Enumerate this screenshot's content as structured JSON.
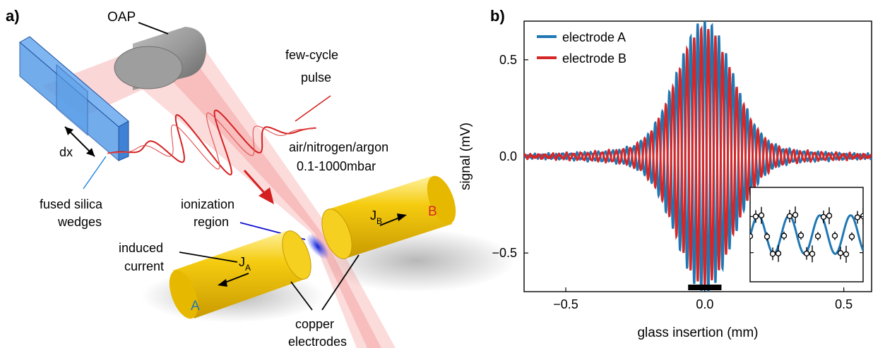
{
  "panel_a": {
    "panel_label": "a)",
    "labels": {
      "oap": "OAP",
      "pulse_line1": "few-cycle",
      "pulse_line2": "pulse",
      "gas_line1": "air/nitrogen/argon",
      "gas_line2": "0.1-1000mbar",
      "dx": "dx",
      "wedges_line1": "fused silica",
      "wedges_line2": "wedges",
      "ionization_line1": "ionization",
      "ionization_line2": "region",
      "induced_line1": "induced",
      "induced_line2": "current",
      "ja_main": "J",
      "ja_sub": "A",
      "jb_main": "J",
      "jb_sub": "B",
      "electrode_a": "A",
      "electrode_b": "B",
      "copper_line1": "copper",
      "copper_line2": "electrodes"
    },
    "colors": {
      "electrode": "#f2c200",
      "beam": "#f06060",
      "glass": "#5a9ee8",
      "pulse": "#d42020"
    }
  },
  "panel_b": {
    "panel_label": "b)"
  },
  "chart_data": {
    "type": "line",
    "xlabel": "glass insertion (mm)",
    "ylabel": "signal (mV)",
    "xlim": [
      -0.65,
      0.6
    ],
    "ylim": [
      -0.7,
      0.7
    ],
    "xticks": [
      -0.5,
      0.0,
      0.5
    ],
    "xtick_labels": [
      "−0.5",
      "0.0",
      "0.5"
    ],
    "yticks": [
      -0.5,
      0.0,
      0.5
    ],
    "ytick_labels": [
      "−0.5",
      "0.0",
      "0.5"
    ],
    "grid": false,
    "legend_position": "top-left",
    "series": [
      {
        "name": "electrode A",
        "color": "#1f77b4",
        "amplitude": 0.66,
        "envelope_width": 0.14,
        "period": 0.0255,
        "phase": 0.0
      },
      {
        "name": "electrode B",
        "color": "#d62728",
        "amplitude": 0.62,
        "envelope_width": 0.14,
        "period": 0.0255,
        "phase": 3.14159
      }
    ],
    "marker_bar": {
      "x_range": [
        -0.06,
        0.06
      ],
      "color": "#000000"
    },
    "inset": {
      "x_range": [
        -0.06,
        0.06
      ],
      "series_color": "#1f77b4",
      "points": [
        -0.04,
        0.45,
        0.48,
        -0.05,
        -0.48,
        -0.47,
        -0.03,
        0.46,
        0.49,
        -0.02,
        -0.47,
        -0.48,
        -0.04,
        0.44,
        0.47,
        -0.03,
        -0.46,
        -0.49,
        -0.05,
        0.43,
        0.46
      ]
    }
  }
}
